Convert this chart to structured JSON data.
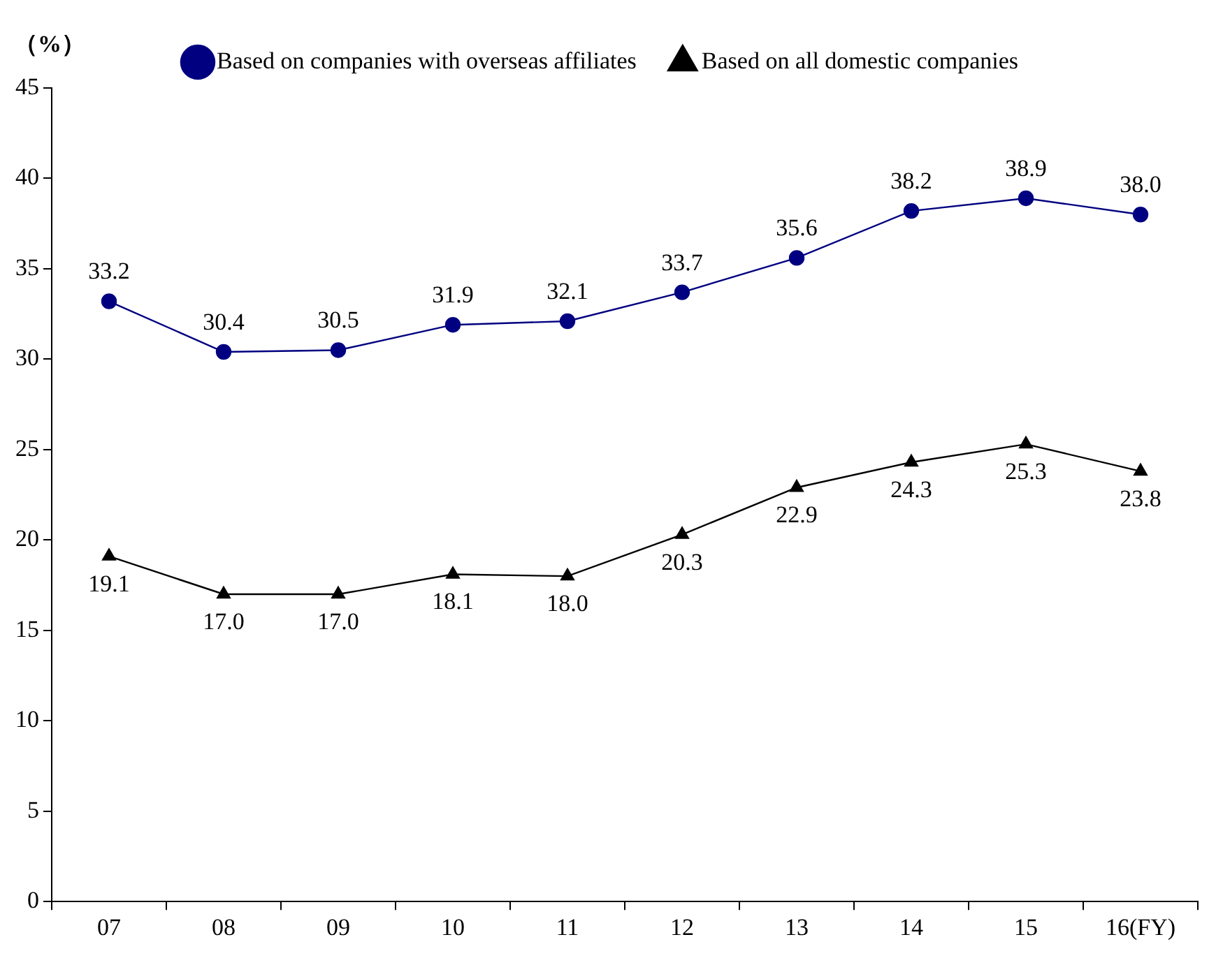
{
  "chart_data": {
    "type": "line",
    "ylabel": "（%）",
    "categories": [
      "07",
      "08",
      "09",
      "10",
      "11",
      "12",
      "13",
      "14",
      "15",
      "16(FY)"
    ],
    "series": [
      {
        "name": "Based on companies with overseas affiliates",
        "color": "#000080",
        "marker": "circle",
        "values": [
          33.2,
          30.4,
          30.5,
          31.9,
          32.1,
          33.7,
          35.6,
          38.2,
          38.9,
          38.0
        ],
        "value_labels": [
          "33.2",
          "30.4",
          "30.5",
          "31.9",
          "32.1",
          "33.7",
          "35.6",
          "38.2",
          "38.9",
          "38.0"
        ]
      },
      {
        "name": "Based on all domestic companies",
        "color": "#000000",
        "marker": "triangle",
        "values": [
          19.1,
          17.0,
          17.0,
          18.1,
          18.0,
          20.3,
          22.9,
          24.3,
          25.3,
          23.8
        ],
        "value_labels": [
          "19.1",
          "17.0",
          "17.0",
          "18.1",
          "18.0",
          "20.3",
          "22.9",
          "24.3",
          "25.3",
          "23.8"
        ]
      }
    ],
    "ylim": [
      0,
      45
    ],
    "yticks": [
      0,
      5,
      10,
      15,
      20,
      25,
      30,
      35,
      40,
      45
    ],
    "grid": false,
    "legend": "top"
  }
}
